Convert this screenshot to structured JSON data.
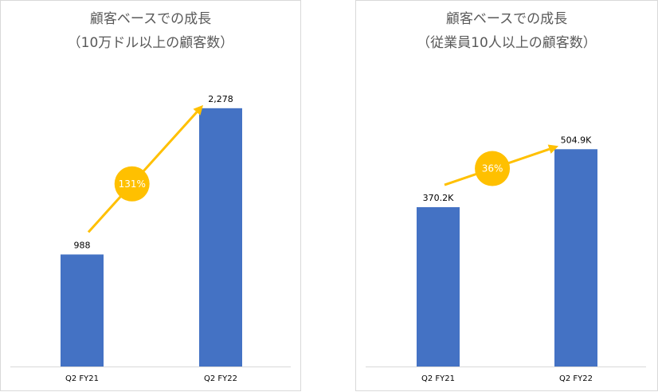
{
  "colors": {
    "bar": "#4472c4",
    "arrow": "#ffc000",
    "axis": "#d9d9d9",
    "title": "#595959"
  },
  "chart_data": [
    {
      "type": "bar",
      "title": "顧客ベースでの成長",
      "subtitle": "（10万ドル以上の顧客数）",
      "categories": [
        "Q2  FY21",
        "Q2 FY22"
      ],
      "values": [
        988,
        2278
      ],
      "value_labels": [
        "988",
        "2,278"
      ],
      "ylim": [
        0,
        2600
      ],
      "growth_label": "131%",
      "grid": false,
      "legend": "none"
    },
    {
      "type": "bar",
      "title": "顧客ベースでの成長",
      "subtitle": "（従業員10人以上の顧客数）",
      "categories": [
        "Q2  FY21",
        "Q2 FY22"
      ],
      "values": [
        370.2,
        504.9
      ],
      "value_labels": [
        "370.2K",
        "504.9K"
      ],
      "ylim": [
        0,
        685
      ],
      "growth_label": "36%",
      "grid": false,
      "legend": "none"
    }
  ]
}
